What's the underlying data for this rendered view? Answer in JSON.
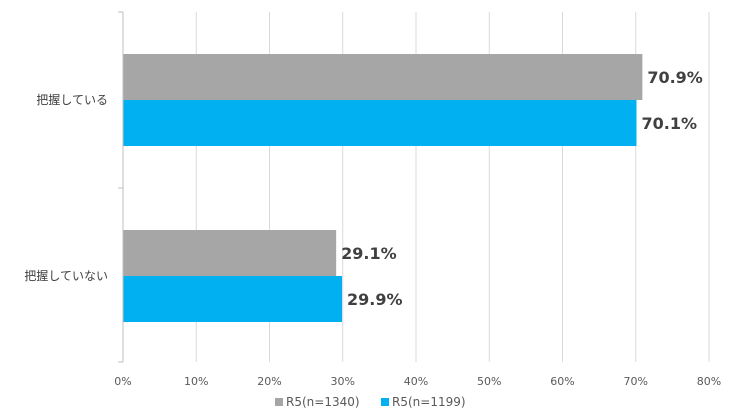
{
  "chart_data": {
    "type": "bar",
    "orientation": "horizontal",
    "title": "",
    "xlabel": "",
    "ylabel": "",
    "xlim": [
      0,
      80
    ],
    "x_ticks": [
      {
        "value": 0,
        "label": "0%"
      },
      {
        "value": 10,
        "label": "10%"
      },
      {
        "value": 20,
        "label": "20%"
      },
      {
        "value": 30,
        "label": "30%"
      },
      {
        "value": 40,
        "label": "40%"
      },
      {
        "value": 50,
        "label": "50%"
      },
      {
        "value": 60,
        "label": "60%"
      },
      {
        "value": 70,
        "label": "70%"
      },
      {
        "value": 80,
        "label": "80%"
      }
    ],
    "grid": true,
    "legend_position": "bottom",
    "categories": [
      "把握している",
      "把握していない"
    ],
    "series": [
      {
        "name": "R5(n=1340)",
        "color": "#a6a6a6",
        "values": [
          70.9,
          29.1
        ],
        "labels": [
          "70.9%",
          "29.1%"
        ]
      },
      {
        "name": "R5(n=1199)",
        "color": "#00b0f0",
        "values": [
          70.1,
          29.9
        ],
        "labels": [
          "70.1%",
          "29.9%"
        ]
      }
    ]
  }
}
